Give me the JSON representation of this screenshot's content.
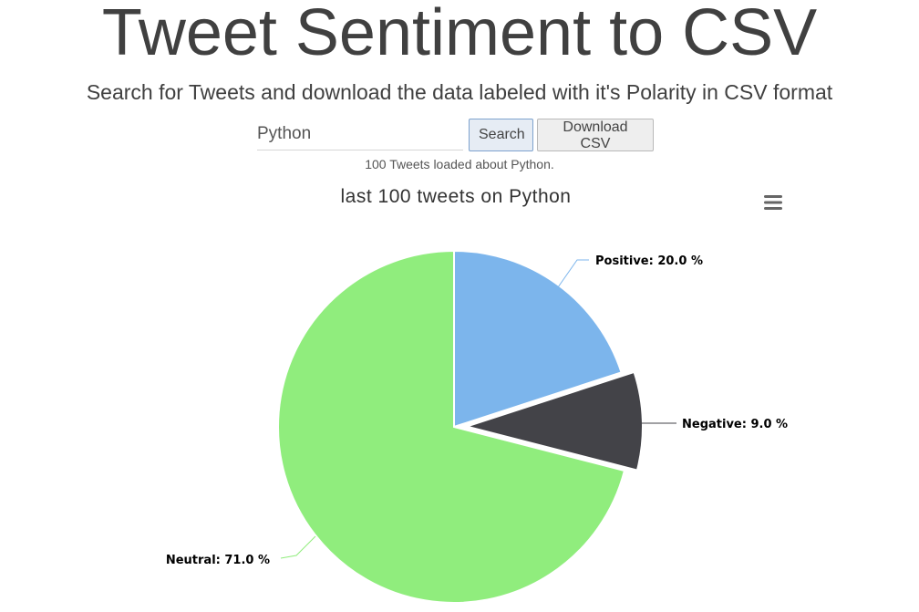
{
  "header": {
    "title": "Tweet Sentiment to CSV",
    "subtitle": "Search for Tweets and download the data labeled with it's Polarity in CSV format"
  },
  "search": {
    "value": "Python",
    "search_label": "Search",
    "download_label": "Download CSV",
    "status": "100 Tweets loaded about Python."
  },
  "chart_menu_icon": "hamburger-menu-icon",
  "chart_data": {
    "type": "pie",
    "title": "last 100 tweets on Python",
    "slices": [
      {
        "name": "Positive",
        "value": 20.0,
        "label": "Positive: 20.0 %",
        "color": "#7cb5ec"
      },
      {
        "name": "Negative",
        "value": 9.0,
        "label": "Negative: 9.0 %",
        "color": "#434348",
        "sliced": true
      },
      {
        "name": "Neutral",
        "value": 71.0,
        "label": "Neutral: 71.0 %",
        "color": "#90ed7d"
      }
    ]
  }
}
